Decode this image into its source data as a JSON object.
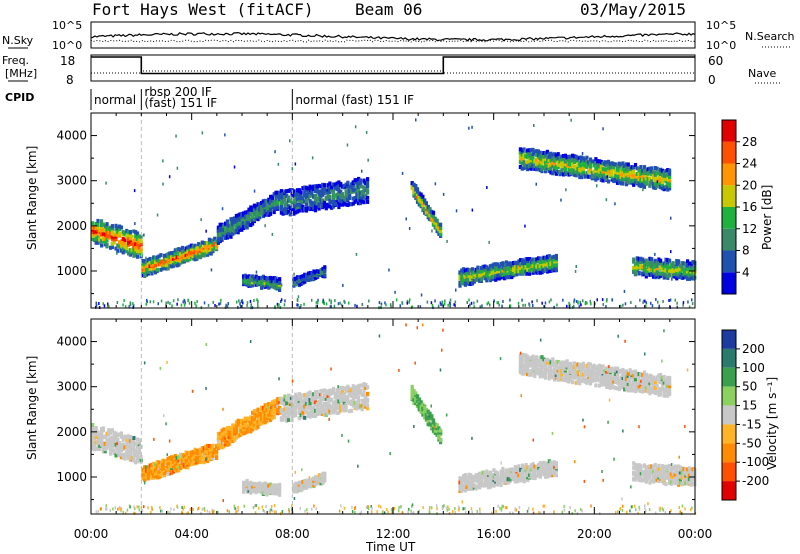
{
  "header": {
    "station": "Fort Hays West (fitACF)",
    "beam": "Beam 06",
    "date": "03/May/2015"
  },
  "strip": {
    "nsky_label": "N.Sky",
    "nsearch_label": "N.Search",
    "noise_ticks_left": [
      "10^5",
      "10^0"
    ],
    "noise_ticks_right": [
      "10^5",
      "10^0"
    ],
    "freq_label_line1": "Freq.",
    "freq_label_line2": "[MHz]",
    "freq_ticks": [
      "18",
      "8"
    ],
    "nave_label": "Nave",
    "nave_ticks": [
      "60",
      "0"
    ],
    "cpid_label": "CPID",
    "cpid_segments": [
      {
        "start_hour": 0,
        "end_hour": 2,
        "line1": "normal",
        "line2": ""
      },
      {
        "start_hour": 2,
        "end_hour": 8,
        "line1": "rbsp 200 IF",
        "line2": "(fast) 151 IF"
      },
      {
        "start_hour": 8,
        "end_hour": 24,
        "line1": "normal (fast) 151 IF",
        "line2": ""
      }
    ]
  },
  "panels": {
    "power": {
      "ylabel": "Slant Range [km]",
      "ytick_labels": [
        "1000",
        "2000",
        "3000",
        "4000"
      ],
      "colorbar_label": "Power [dB]",
      "colorbar_ticks": [
        "4",
        "8",
        "12",
        "16",
        "20",
        "24",
        "28"
      ],
      "colorbar_colors": [
        "#0000e0",
        "#2050b0",
        "#3a8a6a",
        "#20b040",
        "#c8c800",
        "#ff9600",
        "#ff5000",
        "#e00000"
      ]
    },
    "velocity": {
      "ylabel": "Slant Range [km]",
      "ytick_labels": [
        "1000",
        "2000",
        "3000",
        "4000"
      ],
      "colorbar_label": "Velocity [m s⁻¹]",
      "colorbar_ticks": [
        "200",
        "100",
        "50",
        "15",
        "-15",
        "-50",
        "-100",
        "-200"
      ],
      "colorbar_colors": [
        "#1e3ca0",
        "#2a7a6e",
        "#3aa050",
        "#8cd060",
        "#c8c8c8",
        "#ffb428",
        "#ff8c00",
        "#ff5000",
        "#e00000"
      ]
    }
  },
  "xaxis": {
    "label": "Time UT",
    "tick_labels": [
      "00:00",
      "04:00",
      "08:00",
      "12:00",
      "16:00",
      "20:00",
      "00:00"
    ]
  },
  "chart_data": {
    "type": "heatmap",
    "title": "Fort Hays West (fitACF) Beam 06 03/May/2015",
    "xlabel": "Time UT",
    "ylabel": "Slant Range [km]",
    "xlim_hours": [
      0,
      24
    ],
    "ylim_km": [
      180,
      4500
    ],
    "grid": false,
    "frequency_mhz": [
      {
        "start_hour": 0,
        "end_hour": 2,
        "value": 18
      },
      {
        "start_hour": 2,
        "end_hour": 14,
        "value": 10.5
      },
      {
        "start_hour": 14,
        "end_hour": 24,
        "value": 18
      }
    ],
    "echo_regions": [
      {
        "start_hour": 0.0,
        "end_hour": 2.0,
        "range_start_km": 1900,
        "range_end_km": 1550,
        "width_km": 500,
        "peak_power_db": 28,
        "velocity_ms": 0
      },
      {
        "start_hour": 2.0,
        "end_hour": 5.0,
        "range_start_km": 1050,
        "range_end_km": 1600,
        "width_km": 300,
        "peak_power_db": 26,
        "velocity_ms": -50
      },
      {
        "start_hour": 5.0,
        "end_hour": 7.5,
        "range_start_km": 1800,
        "range_end_km": 2600,
        "width_km": 350,
        "peak_power_db": 12,
        "velocity_ms": -50
      },
      {
        "start_hour": 7.5,
        "end_hour": 11.0,
        "range_start_km": 2500,
        "range_end_km": 2800,
        "width_km": 500,
        "peak_power_db": 10,
        "velocity_ms": 0
      },
      {
        "start_hour": 12.7,
        "end_hour": 13.9,
        "range_start_km": 2850,
        "range_end_km": 1850,
        "width_km": 250,
        "peak_power_db": 22,
        "velocity_ms": 50
      },
      {
        "start_hour": 14.6,
        "end_hour": 18.5,
        "range_start_km": 850,
        "range_end_km": 1200,
        "width_km": 300,
        "peak_power_db": 18,
        "velocity_ms": 0
      },
      {
        "start_hour": 17.0,
        "end_hour": 23.0,
        "range_start_km": 3500,
        "range_end_km": 3000,
        "width_km": 400,
        "peak_power_db": 20,
        "velocity_ms": 0
      },
      {
        "start_hour": 21.5,
        "end_hour": 24.0,
        "range_start_km": 1100,
        "range_end_km": 1000,
        "width_km": 350,
        "peak_power_db": 18,
        "velocity_ms": 0
      },
      {
        "start_hour": 6.0,
        "end_hour": 7.5,
        "range_start_km": 800,
        "range_end_km": 700,
        "width_km": 200,
        "peak_power_db": 14,
        "velocity_ms": 0
      },
      {
        "start_hour": 8.0,
        "end_hour": 9.3,
        "range_start_km": 750,
        "range_end_km": 1000,
        "width_km": 150,
        "peak_power_db": 10,
        "velocity_ms": 0
      }
    ]
  }
}
